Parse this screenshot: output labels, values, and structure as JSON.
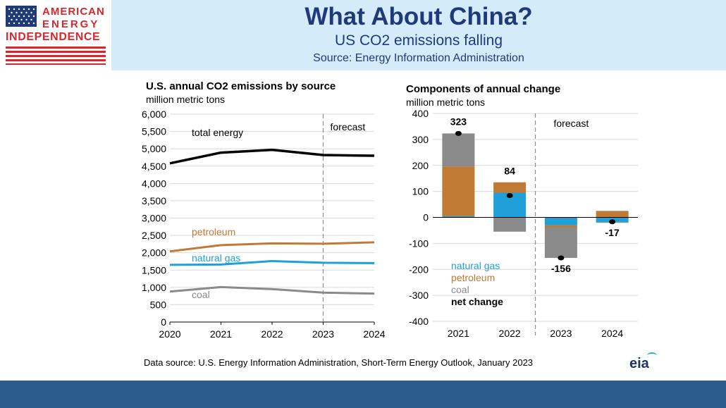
{
  "header": {
    "logo": {
      "line1": "AMERICAN",
      "line2": "ENERGY",
      "line3": "INDEPENDENCE"
    },
    "title": "What About China?",
    "subtitle": "US CO2 emissions falling",
    "source": "Source: Energy Information Administration"
  },
  "footer": {
    "data_source": "Data source: U.S. Energy Information Administration, Short-Term Energy Outlook, January 2023",
    "logo_text": "eia"
  },
  "colors": {
    "header_bg": "#d4ebfa",
    "title": "#1f3a7a",
    "bottom_bar": "#2d5b8c",
    "total_energy": "#000000",
    "petroleum": "#c07a33",
    "natural_gas": "#1fa0d8",
    "coal": "#8a8a8a"
  },
  "chart_data": [
    {
      "type": "line",
      "title": "U.S. annual CO2 emissions by source",
      "subtitle": "million metric tons",
      "x": [
        2020,
        2021,
        2022,
        2023,
        2024
      ],
      "xlabel": "",
      "ylabel": "",
      "ylim": [
        0,
        6000
      ],
      "yticks": [
        "0",
        "500",
        "1,000",
        "1,500",
        "2,000",
        "2,500",
        "3,000",
        "3,500",
        "4,000",
        "4,500",
        "5,000",
        "5,500",
        "6,000"
      ],
      "forecast_start": 2023,
      "forecast_label": "forecast",
      "grid": true,
      "series": [
        {
          "name": "total energy",
          "color": "#000000",
          "values": [
            4580,
            4890,
            4970,
            4820,
            4800
          ]
        },
        {
          "name": "petroleum",
          "color": "#c07a33",
          "values": [
            2040,
            2220,
            2270,
            2260,
            2300
          ]
        },
        {
          "name": "natural gas",
          "color": "#1fa0d8",
          "values": [
            1650,
            1660,
            1760,
            1710,
            1700
          ]
        },
        {
          "name": "coal",
          "color": "#8a8a8a",
          "values": [
            880,
            1010,
            950,
            850,
            820
          ]
        }
      ]
    },
    {
      "type": "bar",
      "stacked": true,
      "title": "Components of annual change",
      "subtitle": "million metric tons",
      "categories": [
        "2021",
        "2022",
        "2023",
        "2024"
      ],
      "ylim": [
        -400,
        400
      ],
      "yticks": [
        "-400",
        "-300",
        "-200",
        "-100",
        "0",
        "100",
        "200",
        "300",
        "400"
      ],
      "forecast_after_index": 1,
      "forecast_label": "forecast",
      "grid": true,
      "series": [
        {
          "name": "natural gas",
          "color": "#1fa0d8",
          "values": [
            5,
            95,
            -30,
            -18
          ]
        },
        {
          "name": "petroleum",
          "color": "#c07a33",
          "values": [
            190,
            40,
            -8,
            25
          ]
        },
        {
          "name": "coal",
          "color": "#8a8a8a",
          "values": [
            128,
            -55,
            -118,
            -3
          ]
        }
      ],
      "net_change": {
        "name": "net change",
        "values": [
          323,
          84,
          -156,
          -17
        ],
        "labels": [
          "323",
          "84",
          "-156",
          "-17"
        ]
      },
      "legend_position": "bottom-left"
    }
  ]
}
